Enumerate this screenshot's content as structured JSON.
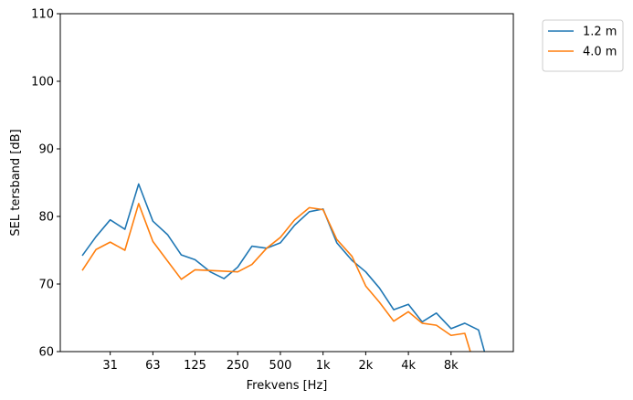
{
  "chart_data": {
    "type": "line",
    "title": "",
    "xlabel": "Frekvens [Hz]",
    "ylabel": "SEL tersband [dB]",
    "x_scale": "log",
    "xlim": [
      14,
      22000
    ],
    "ylim": [
      60,
      110
    ],
    "x_ticks": [
      {
        "value": 31.5,
        "label": "31"
      },
      {
        "value": 63,
        "label": "63"
      },
      {
        "value": 125,
        "label": "125"
      },
      {
        "value": 250,
        "label": "250"
      },
      {
        "value": 500,
        "label": "500"
      },
      {
        "value": 1000,
        "label": "1k"
      },
      {
        "value": 2000,
        "label": "2k"
      },
      {
        "value": 4000,
        "label": "4k"
      },
      {
        "value": 8000,
        "label": "8k"
      }
    ],
    "y_ticks": [
      {
        "value": 60,
        "label": "60"
      },
      {
        "value": 70,
        "label": "70"
      },
      {
        "value": 80,
        "label": "80"
      },
      {
        "value": 90,
        "label": "90"
      },
      {
        "value": 100,
        "label": "100"
      },
      {
        "value": 110,
        "label": "110"
      }
    ],
    "grid": false,
    "legend_position": "outside-top-right",
    "x": [
      20,
      25,
      31.5,
      40,
      50,
      63,
      80,
      100,
      125,
      160,
      200,
      250,
      315,
      400,
      500,
      630,
      800,
      1000,
      1250,
      1600,
      2000,
      2500,
      3150,
      4000,
      5000,
      6300,
      8000,
      10000,
      12500,
      16000
    ],
    "series": [
      {
        "name": "1.2 m",
        "color": "#1f77b4",
        "values": [
          74.2,
          77.0,
          79.5,
          78.1,
          84.8,
          79.3,
          77.3,
          74.3,
          73.6,
          71.8,
          70.8,
          72.5,
          75.6,
          75.3,
          76.1,
          78.7,
          80.7,
          81.1,
          76.1,
          73.5,
          71.8,
          69.4,
          66.2,
          67.0,
          64.4,
          65.7,
          63.4,
          64.2,
          63.2,
          55.0
        ]
      },
      {
        "name": "4.0 m",
        "color": "#ff7f0e",
        "values": [
          72.0,
          75.1,
          76.2,
          75.0,
          81.9,
          76.3,
          73.4,
          70.7,
          72.1,
          72.0,
          71.9,
          71.8,
          72.9,
          75.3,
          76.9,
          79.5,
          81.3,
          81.0,
          76.6,
          74.1,
          69.7,
          67.3,
          64.5,
          65.9,
          64.2,
          63.9,
          62.4,
          62.7,
          56.0,
          55.0
        ]
      }
    ]
  }
}
